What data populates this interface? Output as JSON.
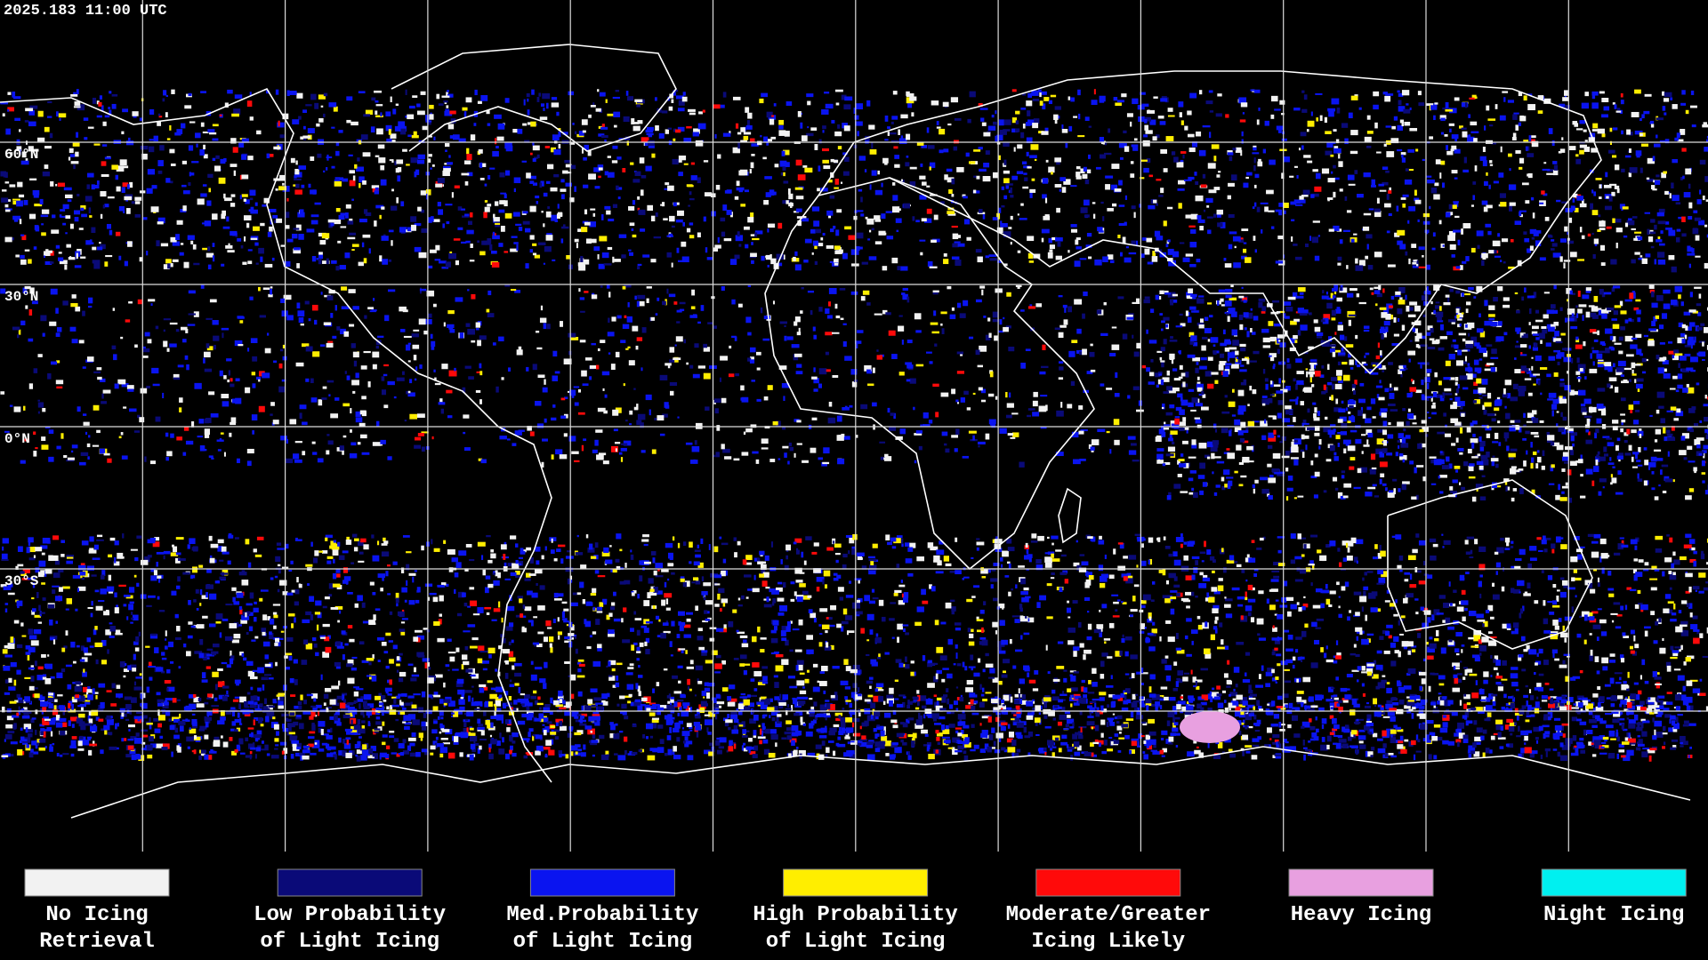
{
  "header": {
    "timestamp": "2025.183 11:00 UTC"
  },
  "latitude_labels": [
    "60°N",
    "30°N",
    "0°N",
    "30°S"
  ],
  "legend": [
    {
      "lines": [
        "No Icing",
        "Retrieval"
      ],
      "color": "#f2f2f2"
    },
    {
      "lines": [
        "Low Probability",
        "of Light Icing"
      ],
      "color": "#0a0a78"
    },
    {
      "lines": [
        "Med.Probability",
        "of Light Icing"
      ],
      "color": "#0a14f0"
    },
    {
      "lines": [
        "High Probability",
        "of Light Icing"
      ],
      "color": "#ffee00"
    },
    {
      "lines": [
        "Moderate/Greater",
        "Icing Likely"
      ],
      "color": "#ff0a0a"
    },
    {
      "lines": [
        "Heavy Icing"
      ],
      "color": "#e8a0e0"
    },
    {
      "lines": [
        "Night Icing"
      ],
      "color": "#00f0f0"
    }
  ]
}
